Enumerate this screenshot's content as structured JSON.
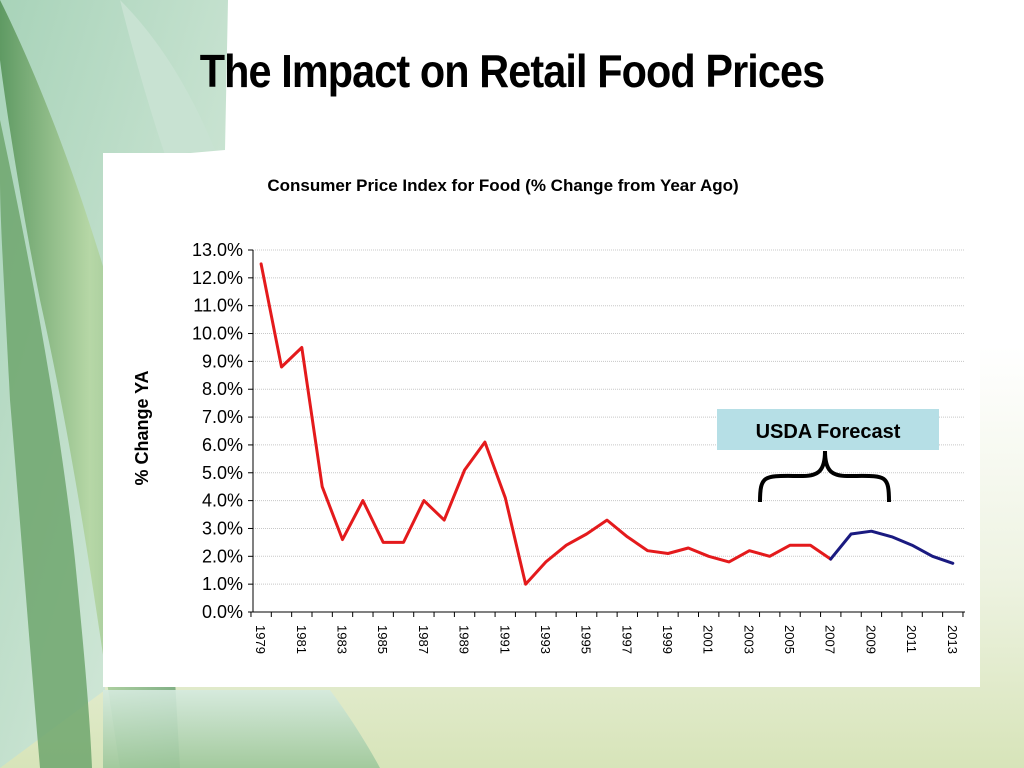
{
  "slide": {
    "title": "The Impact on Retail Food Prices"
  },
  "colors": {
    "historical": "#e41a1c",
    "forecast": "#1a1a80",
    "annotation_box": "#b6dfe6",
    "leaf_green": "#8fbf7a"
  },
  "chart_data": {
    "type": "line",
    "title": "Consumer Price Index for Food (% Change from Year Ago)",
    "xlabel": "",
    "ylabel": "% Change YA",
    "ylim": [
      0,
      13
    ],
    "y_ticks": [
      "0.0%",
      "1.0%",
      "2.0%",
      "3.0%",
      "4.0%",
      "5.0%",
      "6.0%",
      "7.0%",
      "8.0%",
      "9.0%",
      "10.0%",
      "11.0%",
      "12.0%",
      "13.0%"
    ],
    "x_tick_labels": [
      "1979",
      "1981",
      "1983",
      "1985",
      "1987",
      "1989",
      "1991",
      "1993",
      "1995",
      "1997",
      "1999",
      "2001",
      "2003",
      "2005",
      "2007",
      "2009",
      "2011",
      "2013"
    ],
    "grid": true,
    "series": [
      {
        "name": "",
        "color": "#e41a1c",
        "x": [
          1979,
          1980,
          1981,
          1982,
          1983,
          1984,
          1985,
          1986,
          1987,
          1988,
          1989,
          1990,
          1991,
          1992,
          1993,
          1994,
          1995,
          1996,
          1997,
          1998,
          1999,
          2000,
          2001,
          2002,
          2003,
          2004,
          2005,
          2006,
          2007
        ],
        "values": [
          12.5,
          8.8,
          9.5,
          4.5,
          2.6,
          4.0,
          2.5,
          2.5,
          4.0,
          3.3,
          5.1,
          6.1,
          4.1,
          1.0,
          1.8,
          2.4,
          2.8,
          3.3,
          2.7,
          2.2,
          2.1,
          2.3,
          2.0,
          1.8,
          2.2,
          2.0,
          2.4,
          2.4,
          1.9
        ]
      },
      {
        "name": "",
        "color": "#1a1a80",
        "x": [
          2007,
          2008,
          2009,
          2010,
          2011,
          2012,
          2013
        ],
        "values": [
          1.9,
          2.8,
          2.9,
          2.7,
          2.4,
          2.0,
          1.75
        ]
      }
    ],
    "annotations": [
      {
        "text": "USDA Forecast"
      }
    ]
  }
}
